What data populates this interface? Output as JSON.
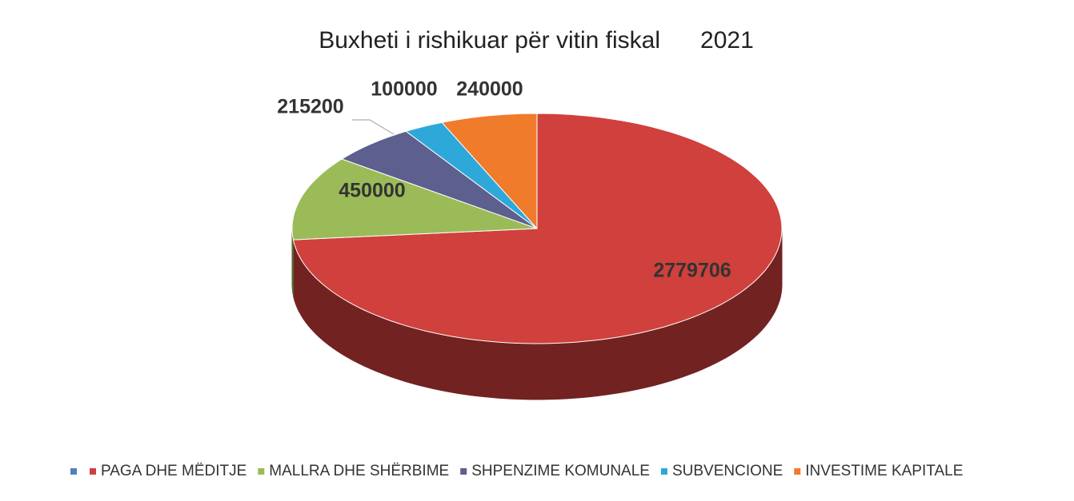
{
  "chart_data": {
    "type": "pie3d",
    "title": "Buxheti i rishikuar për vitin fiskal      2021",
    "categories": [
      null,
      "PAGA DHE MËDITJE",
      "MALLRA DHE SHËRBIME",
      "SHPENZIME KOMUNALE",
      "SUBVENCIONE",
      "INVESTIME KAPITALE"
    ],
    "values": [
      null,
      2779706,
      450000,
      215200,
      100000,
      240000
    ],
    "colors": [
      "#4f81bd",
      "#d0403c",
      "#9bbb59",
      "#5d5f8e",
      "#2ea8d8",
      "#ef7b2b"
    ],
    "legend": "bottom"
  }
}
